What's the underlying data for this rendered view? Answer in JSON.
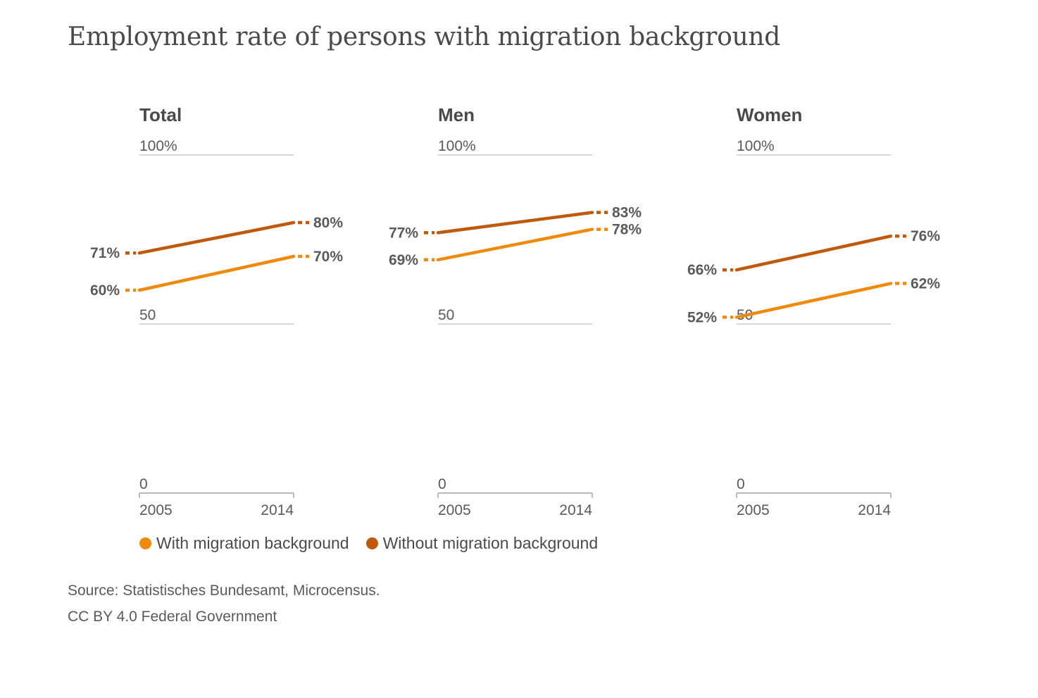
{
  "title": "Employment rate of persons with migration background",
  "colors": {
    "with_migration": "#f08a0c",
    "without_migration": "#bf5a0c",
    "axis": "#cccccc",
    "label_text": "#5a5a5a"
  },
  "chart_data": [
    {
      "type": "line",
      "title": "Total",
      "x": [
        "2005",
        "2014"
      ],
      "ylim": [
        0,
        100
      ],
      "y_ticks": [
        "100%",
        "50",
        "0"
      ],
      "series": [
        {
          "name": "With migration background",
          "values": [
            60,
            70
          ],
          "labels": [
            "60%",
            "70%"
          ]
        },
        {
          "name": "Without migration background",
          "values": [
            71,
            80
          ],
          "labels": [
            "71%",
            "80%"
          ]
        }
      ]
    },
    {
      "type": "line",
      "title": "Men",
      "x": [
        "2005",
        "2014"
      ],
      "ylim": [
        0,
        100
      ],
      "y_ticks": [
        "100%",
        "50",
        "0"
      ],
      "series": [
        {
          "name": "With migration background",
          "values": [
            69,
            78
          ],
          "labels": [
            "69%",
            "78%"
          ]
        },
        {
          "name": "Without migration background",
          "values": [
            77,
            83
          ],
          "labels": [
            "77%",
            "83%"
          ]
        }
      ]
    },
    {
      "type": "line",
      "title": "Women",
      "x": [
        "2005",
        "2014"
      ],
      "ylim": [
        0,
        100
      ],
      "y_ticks": [
        "100%",
        "50",
        "0"
      ],
      "series": [
        {
          "name": "With migration background",
          "values": [
            52,
            62
          ],
          "labels": [
            "52%",
            "62%"
          ]
        },
        {
          "name": "Without migration background",
          "values": [
            66,
            76
          ],
          "labels": [
            "66%",
            "76%"
          ]
        }
      ]
    }
  ],
  "legend": {
    "with_label": "With migration background",
    "without_label": "Without migration background"
  },
  "source": "Source: Statistisches Bundesamt, Microcensus.",
  "license": "CC BY 4.0 Federal Government"
}
